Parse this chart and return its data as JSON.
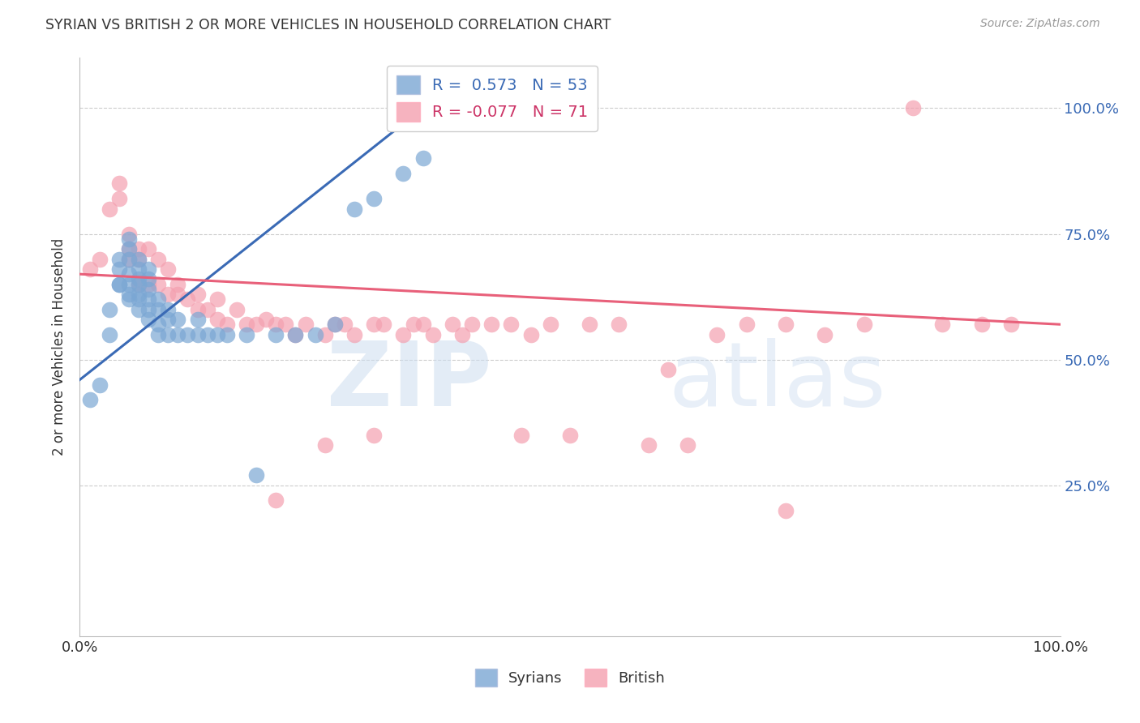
{
  "title": "SYRIAN VS BRITISH 2 OR MORE VEHICLES IN HOUSEHOLD CORRELATION CHART",
  "source": "Source: ZipAtlas.com",
  "ylabel": "2 or more Vehicles in Household",
  "xlim": [
    0.0,
    1.0
  ],
  "ylim": [
    -0.05,
    1.1
  ],
  "grid_color": "#cccccc",
  "background_color": "#ffffff",
  "blue_color": "#7ba7d4",
  "pink_color": "#f4a0b0",
  "blue_line_color": "#3a6ab5",
  "pink_line_color": "#e8607a",
  "legend_line1": "R =  0.573   N = 53",
  "legend_line2": "R = -0.077   N = 71",
  "syrians_x": [
    0.01,
    0.02,
    0.03,
    0.03,
    0.04,
    0.04,
    0.04,
    0.04,
    0.05,
    0.05,
    0.05,
    0.05,
    0.05,
    0.05,
    0.05,
    0.06,
    0.06,
    0.06,
    0.06,
    0.06,
    0.06,
    0.06,
    0.07,
    0.07,
    0.07,
    0.07,
    0.07,
    0.07,
    0.08,
    0.08,
    0.08,
    0.08,
    0.09,
    0.09,
    0.09,
    0.1,
    0.1,
    0.11,
    0.12,
    0.12,
    0.13,
    0.14,
    0.15,
    0.17,
    0.18,
    0.2,
    0.22,
    0.24,
    0.26,
    0.28,
    0.3,
    0.33,
    0.35
  ],
  "syrians_y": [
    0.42,
    0.45,
    0.6,
    0.55,
    0.65,
    0.65,
    0.68,
    0.7,
    0.62,
    0.63,
    0.65,
    0.67,
    0.7,
    0.72,
    0.74,
    0.6,
    0.62,
    0.63,
    0.65,
    0.66,
    0.68,
    0.7,
    0.58,
    0.6,
    0.62,
    0.64,
    0.66,
    0.68,
    0.55,
    0.57,
    0.6,
    0.62,
    0.55,
    0.58,
    0.6,
    0.55,
    0.58,
    0.55,
    0.55,
    0.58,
    0.55,
    0.55,
    0.55,
    0.55,
    0.27,
    0.55,
    0.55,
    0.55,
    0.57,
    0.8,
    0.82,
    0.87,
    0.9
  ],
  "british_x": [
    0.01,
    0.02,
    0.03,
    0.04,
    0.04,
    0.05,
    0.05,
    0.05,
    0.06,
    0.06,
    0.06,
    0.07,
    0.07,
    0.08,
    0.08,
    0.09,
    0.09,
    0.1,
    0.1,
    0.11,
    0.12,
    0.12,
    0.13,
    0.14,
    0.14,
    0.15,
    0.16,
    0.17,
    0.18,
    0.19,
    0.2,
    0.21,
    0.22,
    0.23,
    0.25,
    0.26,
    0.27,
    0.28,
    0.3,
    0.31,
    0.33,
    0.34,
    0.35,
    0.36,
    0.38,
    0.39,
    0.4,
    0.42,
    0.44,
    0.46,
    0.48,
    0.52,
    0.55,
    0.58,
    0.62,
    0.65,
    0.68,
    0.72,
    0.76,
    0.8,
    0.85,
    0.88,
    0.92,
    0.95,
    0.6,
    0.45,
    0.5,
    0.3,
    0.25,
    0.2,
    0.72
  ],
  "british_y": [
    0.68,
    0.7,
    0.8,
    0.82,
    0.85,
    0.7,
    0.72,
    0.75,
    0.65,
    0.7,
    0.72,
    0.65,
    0.72,
    0.65,
    0.7,
    0.63,
    0.68,
    0.63,
    0.65,
    0.62,
    0.6,
    0.63,
    0.6,
    0.58,
    0.62,
    0.57,
    0.6,
    0.57,
    0.57,
    0.58,
    0.57,
    0.57,
    0.55,
    0.57,
    0.55,
    0.57,
    0.57,
    0.55,
    0.57,
    0.57,
    0.55,
    0.57,
    0.57,
    0.55,
    0.57,
    0.55,
    0.57,
    0.57,
    0.57,
    0.55,
    0.57,
    0.57,
    0.57,
    0.33,
    0.33,
    0.55,
    0.57,
    0.57,
    0.55,
    0.57,
    1.0,
    0.57,
    0.57,
    0.57,
    0.48,
    0.35,
    0.35,
    0.35,
    0.33,
    0.22,
    0.2
  ],
  "blue_trendline_x": [
    0.0,
    0.35
  ],
  "blue_trendline_y": [
    0.46,
    1.0
  ],
  "pink_trendline_x": [
    0.0,
    1.0
  ],
  "pink_trendline_y": [
    0.67,
    0.57
  ]
}
